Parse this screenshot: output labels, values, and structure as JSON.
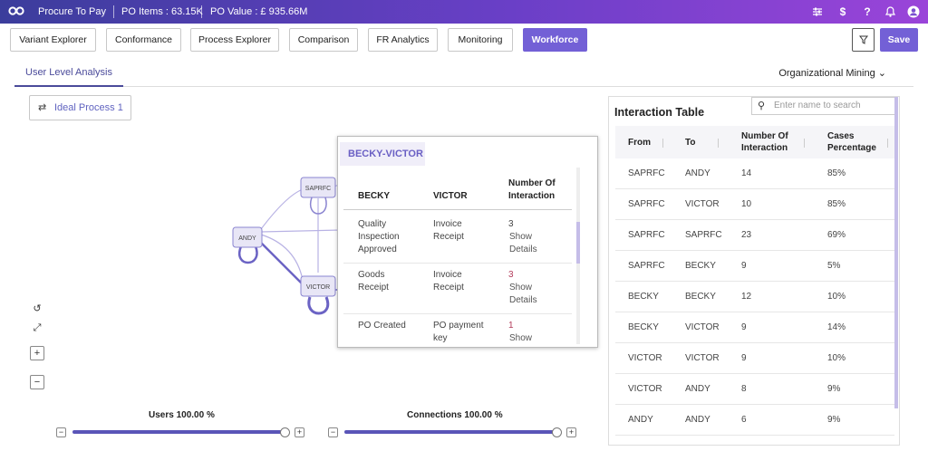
{
  "header": {
    "app_name": "Procure To Pay",
    "po_items": "PO Items : 63.15K",
    "po_value": "PO Value : £ 935.66M",
    "icons": [
      "sliders-icon",
      "dollar-icon",
      "help-icon",
      "bell-icon",
      "user-icon"
    ]
  },
  "nav": {
    "tabs": [
      "Variant Explorer",
      "Conformance",
      "Process Explorer",
      "Comparison",
      "FR Analytics",
      "Monitoring",
      "Workforce"
    ],
    "active": "Workforce",
    "save_label": "Save"
  },
  "subtabs": {
    "active_label": "User Level Analysis",
    "dropdown_label": "Organizational Mining ⌄"
  },
  "canvas": {
    "ideal_process_label": "Ideal Process 1",
    "nodes": [
      "SAPRFC",
      "ANDY",
      "VICTOR"
    ],
    "controls": {
      "reset": "↺",
      "fit": "⤢",
      "zoom_in": "+",
      "zoom_out": "−"
    }
  },
  "popup": {
    "title": "BECKY-VICTOR",
    "headers": [
      "BECKY",
      "VICTOR",
      "Number Of Interaction"
    ],
    "rows": [
      {
        "from": "Quality Inspection Approved",
        "to": "Invoice Receipt",
        "count": "3",
        "link": "Show Details"
      },
      {
        "from": "Goods Receipt",
        "to": "Invoice Receipt",
        "count": "3",
        "link": "Show Details"
      },
      {
        "from": "PO Created",
        "to": "PO payment key",
        "count": "1",
        "link": "Show"
      }
    ]
  },
  "sliders": {
    "users_label": "Users 100.00 %",
    "connections_label": "Connections 100.00 %",
    "users_value": 1.0,
    "connections_value": 1.0,
    "minus": "−",
    "plus": "+"
  },
  "interaction_table": {
    "title": "Interaction Table",
    "search_placeholder": "Enter name to search",
    "headers": [
      "From",
      "To",
      "Number Of Interaction",
      "Cases Percentage"
    ],
    "rows": [
      [
        "SAPRFC",
        "ANDY",
        "14",
        "85%"
      ],
      [
        "SAPRFC",
        "VICTOR",
        "10",
        "85%"
      ],
      [
        "SAPRFC",
        "SAPRFC",
        "23",
        "69%"
      ],
      [
        "SAPRFC",
        "BECKY",
        "9",
        "5%"
      ],
      [
        "BECKY",
        "BECKY",
        "12",
        "10%"
      ],
      [
        "BECKY",
        "VICTOR",
        "9",
        "14%"
      ],
      [
        "VICTOR",
        "VICTOR",
        "9",
        "10%"
      ],
      [
        "VICTOR",
        "ANDY",
        "8",
        "9%"
      ],
      [
        "ANDY",
        "ANDY",
        "6",
        "9%"
      ]
    ]
  },
  "colors": {
    "accent": "#7360d6",
    "header_start": "#3b3d9c",
    "header_end": "#9a44d9",
    "edge": "#6b63c4",
    "highlight_number": "#b23b5a"
  }
}
